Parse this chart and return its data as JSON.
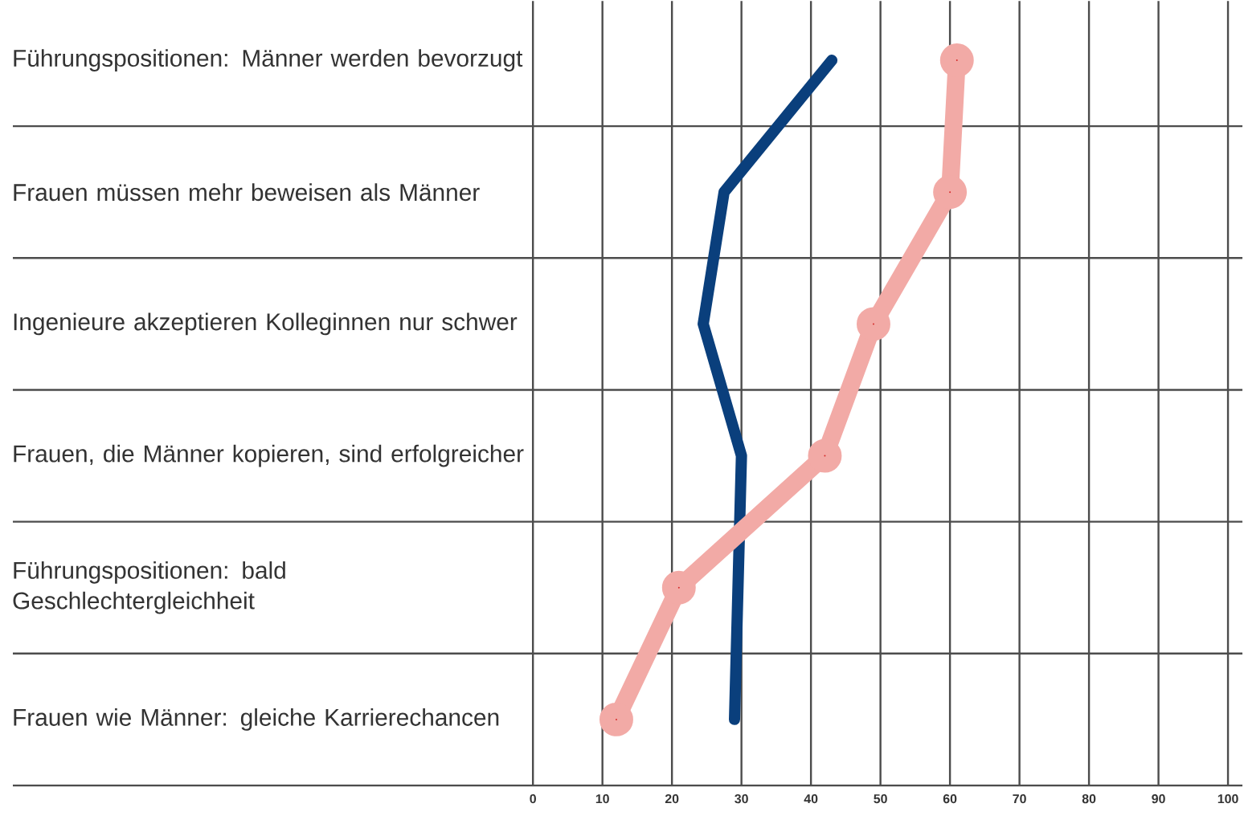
{
  "chart_data": {
    "type": "line",
    "orientation": "horizontal",
    "categories": [
      "Führungspositionen: Männer werden bevorzugt",
      "Frauen müssen mehr beweisen als Männer",
      "Ingenieure akzeptieren Kolleginnen nur schwer",
      "Frauen, die Männer kopieren, sind erfolgreicher",
      "Führungspositionen: bald Geschlechtergleichheit",
      "Frauen wie Männer: gleiche Karrierechancen"
    ],
    "series": [
      {
        "color": "#0a3f7c",
        "values": [
          43,
          27.5,
          24.5,
          30,
          29.5,
          29
        ],
        "marker": "none"
      },
      {
        "color": "#f2aaa6",
        "values": [
          61,
          60,
          49,
          42,
          21,
          12
        ],
        "marker": "circle"
      }
    ],
    "xlim": [
      0,
      100
    ],
    "xticks": [
      0,
      10,
      20,
      30,
      40,
      50,
      60,
      70,
      80,
      90,
      100
    ],
    "grid": true
  }
}
